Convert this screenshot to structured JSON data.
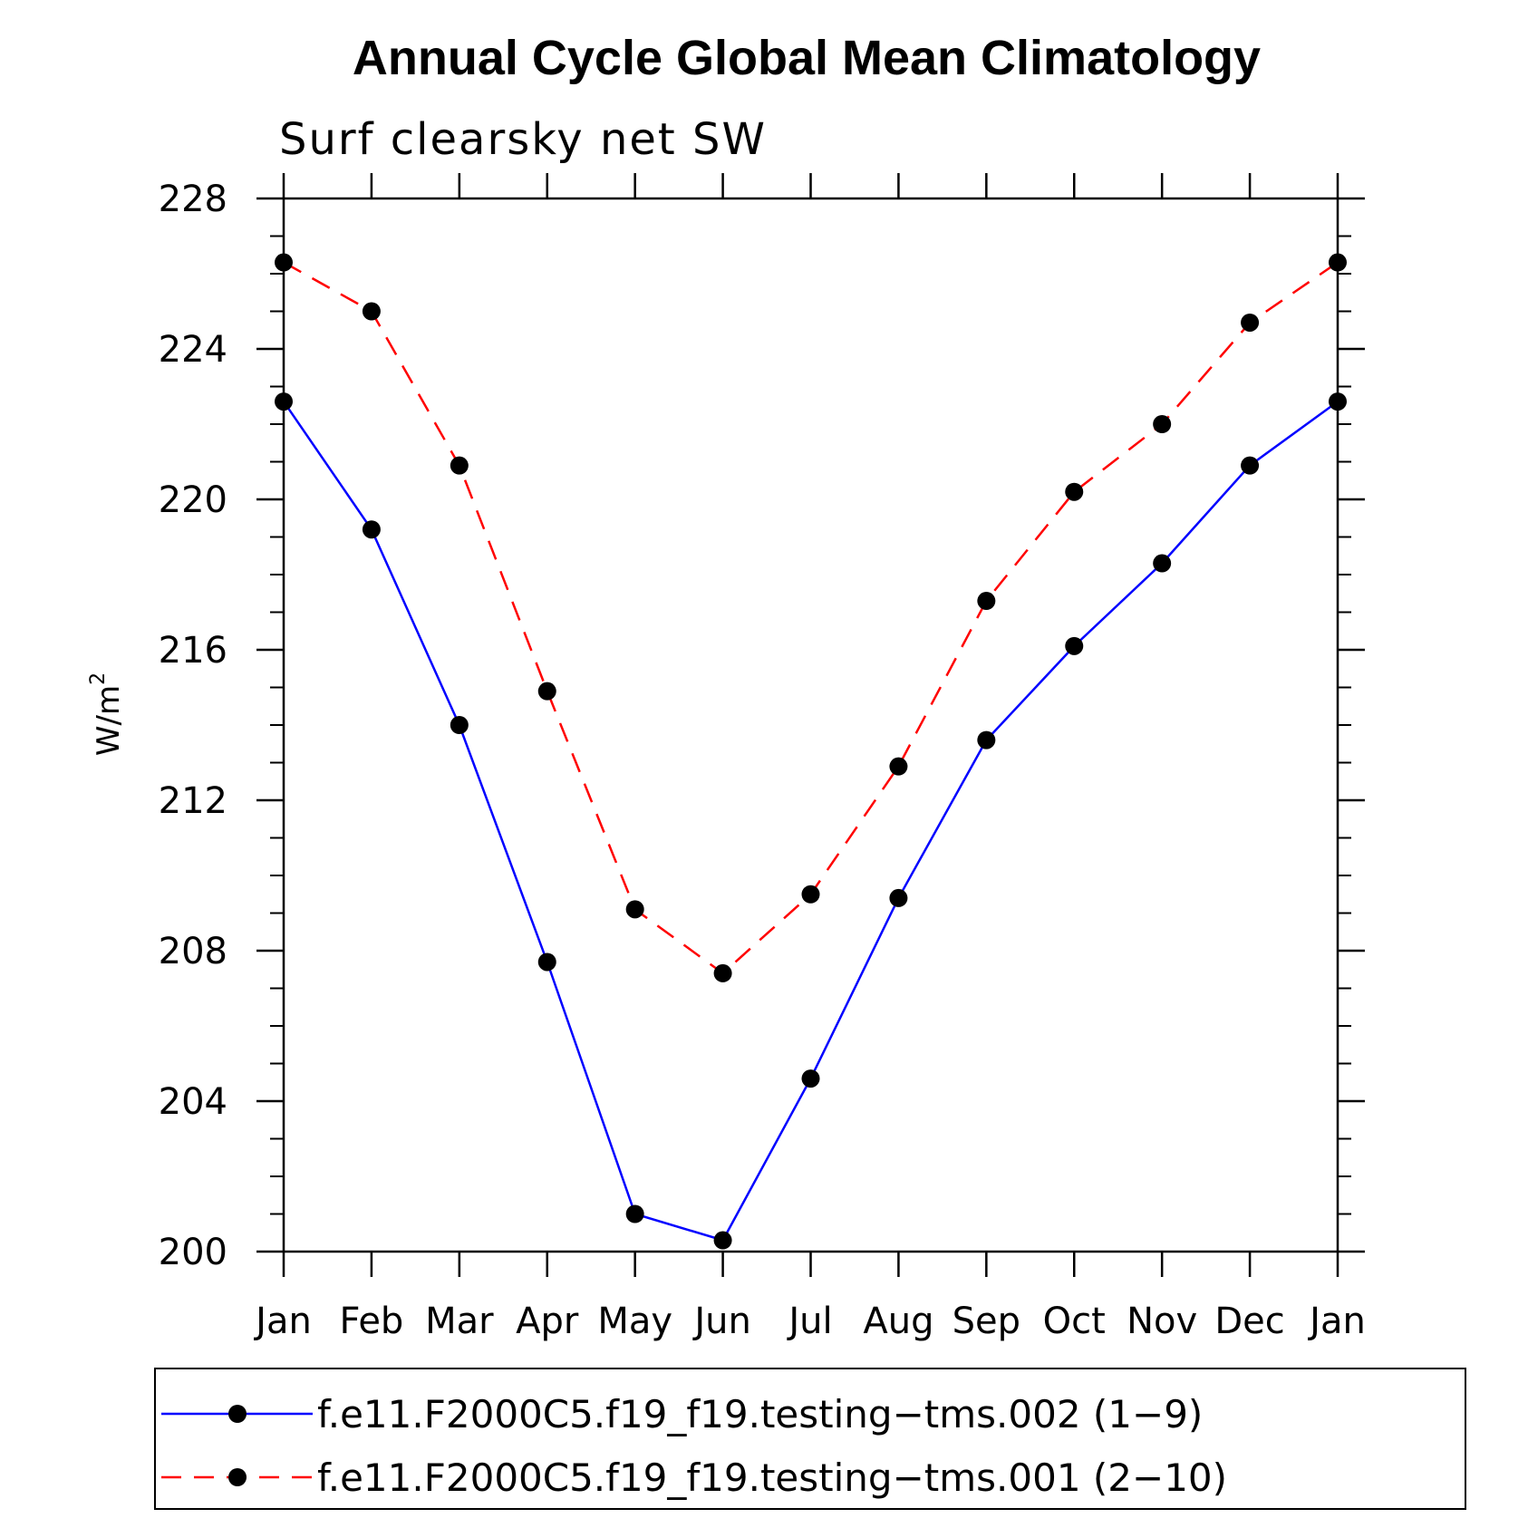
{
  "chart_data": {
    "type": "line",
    "title": "Annual Cycle Global Mean Climatology",
    "subtitle": "Surf clearsky net SW",
    "xlabel": "",
    "ylabel": "W/m",
    "ylabel_superscript": "2",
    "ylim": [
      200,
      228
    ],
    "yticks": [
      200,
      204,
      208,
      212,
      216,
      220,
      224,
      228
    ],
    "categories": [
      "Jan",
      "Feb",
      "Mar",
      "Apr",
      "May",
      "Jun",
      "Jul",
      "Aug",
      "Sep",
      "Oct",
      "Nov",
      "Dec",
      "Jan"
    ],
    "series": [
      {
        "name": "f.e11.F2000C5.f19_f19.testing−tms.002 (1−9)",
        "color": "#0000ff",
        "style": "solid",
        "values": [
          222.6,
          219.2,
          214.0,
          207.7,
          201.0,
          200.3,
          204.6,
          209.4,
          213.6,
          216.1,
          218.3,
          220.9,
          222.6
        ]
      },
      {
        "name": "f.e11.F2000C5.f19_f19.testing−tms.001 (2−10)",
        "color": "#ff0000",
        "style": "dashed",
        "values": [
          226.3,
          225.0,
          220.9,
          214.9,
          209.1,
          207.4,
          209.5,
          212.9,
          217.3,
          220.2,
          222.0,
          224.7,
          226.3
        ]
      }
    ],
    "legend": "bottom"
  }
}
